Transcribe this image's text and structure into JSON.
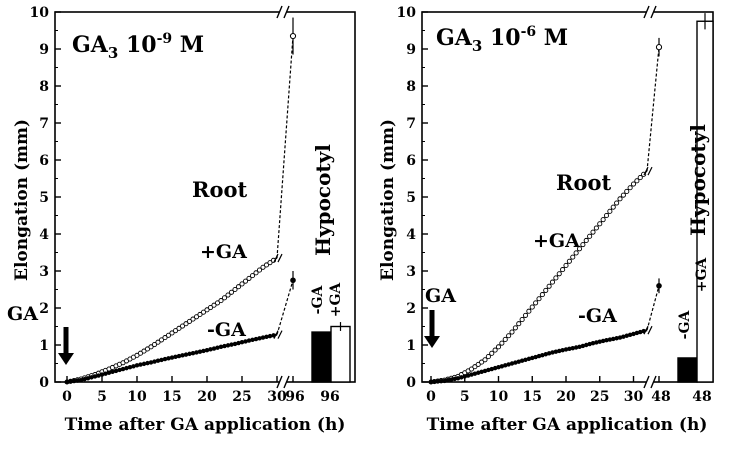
{
  "chart_data": [
    {
      "type": "line",
      "title": "GA3 10-9 M",
      "title_parts": {
        "base": "GA",
        "sub": "3",
        "conc": " 10",
        "exp": "-9",
        "unit": " M"
      },
      "ylabel": "Elongation (mm)",
      "xlabel": "Time after GA application (h)",
      "ylim": [
        0,
        10
      ],
      "yticks": [
        "0",
        "1",
        "2",
        "3",
        "4",
        "5",
        "6",
        "7",
        "8",
        "9",
        "10"
      ],
      "xticks": [
        "0",
        "5",
        "10",
        "15",
        "20",
        "25",
        "30"
      ],
      "xtick_late": "96",
      "bar_tick": "96",
      "late_hour": 96,
      "root_label": "Root",
      "hypocotyl_label": "Hypocotyl",
      "ga_arrow_label": "GA",
      "series": [
        {
          "name": "+GA",
          "x": [
            0,
            2,
            4,
            6,
            8,
            10,
            12,
            14,
            16,
            18,
            20,
            22,
            24,
            26,
            28,
            30
          ],
          "y": [
            0,
            0.08,
            0.2,
            0.35,
            0.52,
            0.72,
            0.95,
            1.2,
            1.45,
            1.7,
            1.95,
            2.2,
            2.5,
            2.8,
            3.1,
            3.35
          ],
          "late": 9.35,
          "late_err": 0.5
        },
        {
          "name": "-GA",
          "x": [
            0,
            2,
            4,
            6,
            8,
            10,
            12,
            14,
            16,
            18,
            20,
            22,
            24,
            26,
            28,
            30
          ],
          "y": [
            0,
            0.05,
            0.15,
            0.25,
            0.35,
            0.45,
            0.53,
            0.62,
            0.7,
            0.78,
            0.86,
            0.95,
            1.03,
            1.12,
            1.2,
            1.28
          ],
          "late": 2.75,
          "late_err": 0.25
        }
      ],
      "bars": [
        {
          "label": "-GA",
          "value": 1.35,
          "fill": "#000000"
        },
        {
          "label": "+GA",
          "value": 1.5,
          "fill": "#ffffff",
          "err": 0.12
        }
      ]
    },
    {
      "type": "line",
      "title": "GA3 10-6 M",
      "title_parts": {
        "base": "GA",
        "sub": "3",
        "conc": " 10",
        "exp": "-6",
        "unit": " M"
      },
      "ylabel": "Elongation (mm)",
      "xlabel": "Time after GA application (h)",
      "ylim": [
        0,
        10
      ],
      "yticks": [
        "0",
        "1",
        "2",
        "3",
        "4",
        "5",
        "6",
        "7",
        "8",
        "9",
        "10"
      ],
      "xticks": [
        "0",
        "5",
        "10",
        "15",
        "20",
        "25",
        "30"
      ],
      "xtick_late": "48",
      "bar_tick": "48",
      "late_hour": 48,
      "root_label": "Root",
      "hypocotyl_label": "Hypocotyl",
      "ga_arrow_label": "GA",
      "series": [
        {
          "name": "+GA",
          "x": [
            0,
            2,
            4,
            6,
            8,
            10,
            12,
            14,
            16,
            18,
            20,
            22,
            24,
            26,
            28,
            30,
            32
          ],
          "y": [
            0,
            0.05,
            0.15,
            0.35,
            0.6,
            0.95,
            1.35,
            1.8,
            2.25,
            2.7,
            3.15,
            3.6,
            4.05,
            4.5,
            4.95,
            5.35,
            5.7
          ],
          "late": 9.05,
          "late_err": 0.25
        },
        {
          "name": "-GA",
          "x": [
            0,
            2,
            4,
            6,
            8,
            10,
            12,
            14,
            16,
            18,
            20,
            22,
            24,
            26,
            28,
            30,
            32
          ],
          "y": [
            0,
            0.03,
            0.1,
            0.2,
            0.3,
            0.4,
            0.5,
            0.6,
            0.7,
            0.8,
            0.88,
            0.95,
            1.05,
            1.13,
            1.2,
            1.3,
            1.4
          ],
          "late": 2.6,
          "late_err": 0.2
        }
      ],
      "bars": [
        {
          "label": "-GA",
          "value": 0.65,
          "fill": "#000000"
        },
        {
          "label": "+GA",
          "value": 9.75,
          "fill": "#ffffff",
          "err": 0.22
        }
      ]
    }
  ]
}
